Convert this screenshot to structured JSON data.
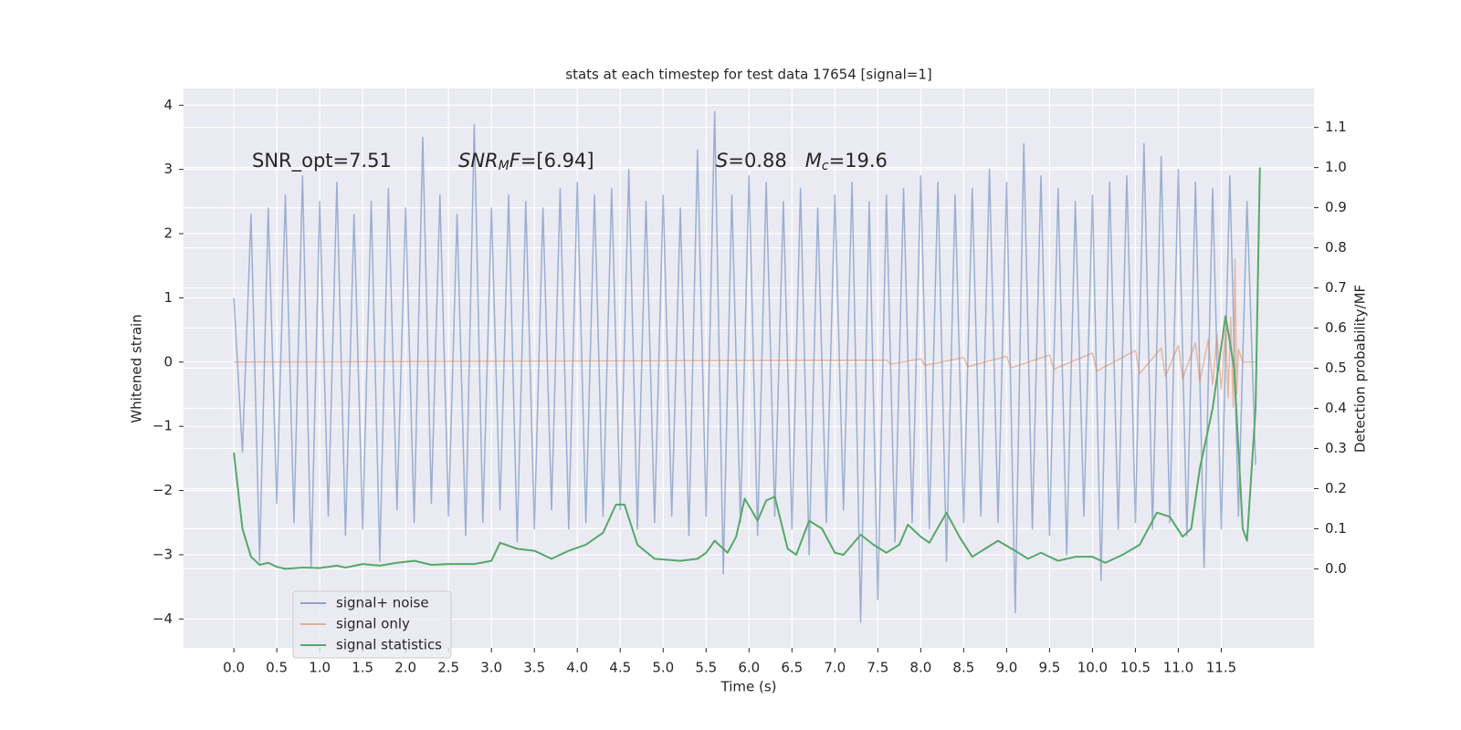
{
  "chart_data": {
    "type": "line",
    "title": "stats at each timestep for test data 17654 [signal=1]",
    "x_label": "Time (s)",
    "y_label": "Whitened strain",
    "y2_label": "Detection probability/MF",
    "grid": true,
    "legend": "lower left",
    "xlim": [
      -0.586,
      12.58
    ],
    "xticks": [
      {
        "value": 0,
        "label": "0.0"
      },
      0.5,
      {
        "value": 1,
        "label": "1.0"
      },
      1.5,
      {
        "value": 2,
        "label": "2.0"
      },
      2.5,
      {
        "value": 3,
        "label": "3.0"
      },
      3.5,
      {
        "value": 4,
        "label": "4.0"
      },
      4.5,
      {
        "value": 5,
        "label": "5.0"
      },
      5.5,
      {
        "value": 6,
        "label": "6.0"
      },
      6.5,
      {
        "value": 7,
        "label": "7.0"
      },
      7.5,
      {
        "value": 8,
        "label": "8.0"
      },
      8.5,
      {
        "value": 9,
        "label": "9.0"
      },
      9.5,
      {
        "value": 10,
        "label": "10.0"
      },
      10.5,
      {
        "value": 11,
        "label": "11.0"
      },
      11.5
    ],
    "ylim": [
      -4.45,
      4.26
    ],
    "yticks": [
      {
        "value": -4,
        "label": "−4"
      },
      {
        "value": -3,
        "label": "−3"
      },
      {
        "value": -2,
        "label": "−2"
      },
      {
        "value": -1,
        "label": "−1"
      },
      0,
      1,
      2,
      3,
      4
    ],
    "y2lim": [
      -0.197,
      1.197
    ],
    "y2ticks": [
      {
        "value": 0,
        "label": "0.0"
      },
      0.1,
      0.2,
      0.3,
      0.4,
      0.5,
      0.6,
      0.7,
      0.8,
      0.9,
      {
        "value": 1,
        "label": "1.0"
      },
      1.1
    ],
    "annotations": [
      [
        {
          "text": "SNR_opt=7.51",
          "style": "plain"
        }
      ],
      [
        {
          "text": "SNR",
          "style": "italic"
        },
        {
          "text": "M",
          "style": "sub"
        },
        {
          "text": "F",
          "style": "italic"
        },
        {
          "text": "=[6.94]",
          "style": "plain"
        }
      ],
      [
        {
          "text": "S",
          "style": "italic"
        },
        {
          "text": "=0.88   ",
          "style": "plain"
        },
        {
          "text": "M",
          "style": "italic"
        },
        {
          "text": "c",
          "style": "sub"
        },
        {
          "text": "=19.6",
          "style": "plain"
        }
      ]
    ],
    "series": [
      {
        "name": "signal+ noise",
        "color": "#4c72b0",
        "x": [
          0.0,
          0.1,
          0.2,
          0.3,
          0.4,
          0.5,
          0.6,
          0.7,
          0.8,
          0.9,
          1.0,
          1.1,
          1.2,
          1.3,
          1.4,
          1.5,
          1.6,
          1.7,
          1.8,
          1.9,
          2.0,
          2.1,
          2.2,
          2.3,
          2.4,
          2.5,
          2.6,
          2.7,
          2.8,
          2.9,
          3.0,
          3.1,
          3.2,
          3.3,
          3.4,
          3.5,
          3.6,
          3.7,
          3.8,
          3.9,
          4.0,
          4.1,
          4.2,
          4.3,
          4.4,
          4.5,
          4.6,
          4.7,
          4.8,
          4.9,
          5.0,
          5.1,
          5.2,
          5.3,
          5.4,
          5.5,
          5.6,
          5.7,
          5.8,
          5.9,
          6.0,
          6.1,
          6.2,
          6.3,
          6.4,
          6.5,
          6.6,
          6.7,
          6.8,
          6.9,
          7.0,
          7.1,
          7.2,
          7.3,
          7.4,
          7.5,
          7.6,
          7.7,
          7.8,
          7.9,
          8.0,
          8.1,
          8.2,
          8.3,
          8.4,
          8.5,
          8.6,
          8.7,
          8.8,
          8.9,
          9.0,
          9.1,
          9.2,
          9.3,
          9.4,
          9.5,
          9.6,
          9.7,
          9.8,
          9.9,
          10.0,
          10.1,
          10.2,
          10.3,
          10.4,
          10.5,
          10.6,
          10.7,
          10.8,
          10.9,
          11.0,
          11.1,
          11.2,
          11.3,
          11.4,
          11.5,
          11.6,
          11.7,
          11.8,
          11.9
        ],
        "values": [
          1.0,
          -1.4,
          2.3,
          -3.1,
          2.4,
          -2.2,
          2.6,
          -2.5,
          2.9,
          -3.2,
          2.5,
          -2.4,
          2.8,
          -2.7,
          2.3,
          -2.6,
          2.5,
          -3.1,
          2.7,
          -2.3,
          2.4,
          -2.5,
          3.5,
          -2.2,
          2.6,
          -2.4,
          2.3,
          -2.7,
          3.7,
          -2.5,
          2.4,
          -2.3,
          2.6,
          -2.8,
          2.5,
          -2.6,
          2.4,
          -2.3,
          2.7,
          -2.6,
          2.8,
          -2.5,
          2.6,
          -2.4,
          2.7,
          -2.3,
          3.0,
          -2.6,
          2.5,
          -2.5,
          2.6,
          -2.4,
          2.4,
          -2.7,
          3.3,
          -2.4,
          3.9,
          -3.3,
          2.6,
          -2.5,
          2.9,
          -2.7,
          2.8,
          -2.4,
          2.5,
          -2.6,
          2.7,
          -3.0,
          2.4,
          -2.5,
          2.6,
          -2.3,
          2.8,
          -4.05,
          2.5,
          -3.7,
          2.6,
          -2.8,
          2.7,
          -2.5,
          2.9,
          -2.6,
          2.8,
          -3.1,
          2.6,
          -2.5,
          2.7,
          -2.4,
          3.0,
          -2.5,
          2.8,
          -3.9,
          3.4,
          -2.6,
          2.9,
          -2.7,
          2.7,
          -3.0,
          2.5,
          -2.4,
          2.6,
          -3.4,
          2.8,
          -2.6,
          2.9,
          -2.5,
          3.4,
          -2.6,
          3.2,
          -2.5,
          3.0,
          -2.7,
          2.8,
          -3.2,
          2.7,
          -2.6,
          2.9,
          -2.4,
          2.5,
          -1.6
        ]
      },
      {
        "name": "signal only",
        "color": "#dd8452",
        "x": [
          0,
          7.6,
          7.65,
          8.0,
          8.05,
          8.5,
          8.55,
          9.0,
          9.05,
          9.5,
          9.55,
          10.0,
          10.05,
          10.5,
          10.55,
          10.8,
          10.85,
          11.0,
          11.05,
          11.2,
          11.25,
          11.35,
          11.4,
          11.45,
          11.5,
          11.55,
          11.58,
          11.61,
          11.64,
          11.66,
          11.68,
          11.7,
          11.75,
          11.9
        ],
        "values": [
          0,
          0.03,
          -0.03,
          0.05,
          -0.05,
          0.07,
          -0.07,
          0.09,
          -0.09,
          0.11,
          -0.11,
          0.14,
          -0.14,
          0.18,
          -0.18,
          0.22,
          -0.22,
          0.26,
          -0.26,
          0.3,
          -0.3,
          0.35,
          -0.35,
          0.42,
          -0.42,
          0.5,
          -0.55,
          0.7,
          -0.7,
          1.6,
          -0.5,
          0.2,
          0,
          0
        ]
      },
      {
        "name": "signal statistics",
        "color": "#55a868",
        "axis": "y2",
        "x": [
          0,
          0.1,
          0.2,
          0.3,
          0.4,
          0.5,
          0.6,
          0.8,
          1.0,
          1.2,
          1.3,
          1.5,
          1.7,
          1.9,
          2.1,
          2.3,
          2.5,
          2.8,
          3.0,
          3.1,
          3.3,
          3.5,
          3.7,
          3.9,
          4.1,
          4.3,
          4.45,
          4.55,
          4.7,
          4.9,
          5.2,
          5.4,
          5.5,
          5.6,
          5.75,
          5.85,
          5.95,
          6.1,
          6.2,
          6.3,
          6.45,
          6.55,
          6.7,
          6.85,
          7.0,
          7.1,
          7.3,
          7.45,
          7.6,
          7.75,
          7.85,
          8.0,
          8.1,
          8.3,
          8.45,
          8.6,
          8.75,
          8.9,
          9.1,
          9.25,
          9.4,
          9.6,
          9.8,
          10.0,
          10.15,
          10.35,
          10.55,
          10.75,
          10.9,
          11.05,
          11.15,
          11.25,
          11.4,
          11.55,
          11.65,
          11.75,
          11.8,
          11.9,
          11.95
        ],
        "values": [
          0.29,
          0.1,
          0.03,
          0.01,
          0.015,
          0.005,
          0.0,
          0.003,
          0.002,
          0.008,
          0.003,
          0.012,
          0.008,
          0.015,
          0.02,
          0.01,
          0.012,
          0.012,
          0.02,
          0.065,
          0.05,
          0.045,
          0.025,
          0.045,
          0.06,
          0.09,
          0.16,
          0.16,
          0.06,
          0.025,
          0.02,
          0.025,
          0.04,
          0.07,
          0.04,
          0.08,
          0.175,
          0.12,
          0.17,
          0.18,
          0.05,
          0.035,
          0.12,
          0.1,
          0.04,
          0.035,
          0.085,
          0.06,
          0.04,
          0.06,
          0.11,
          0.08,
          0.065,
          0.14,
          0.08,
          0.03,
          0.05,
          0.07,
          0.045,
          0.025,
          0.04,
          0.02,
          0.03,
          0.03,
          0.015,
          0.035,
          0.06,
          0.14,
          0.13,
          0.08,
          0.1,
          0.25,
          0.4,
          0.63,
          0.5,
          0.1,
          0.07,
          0.4,
          1.0
        ]
      }
    ]
  }
}
